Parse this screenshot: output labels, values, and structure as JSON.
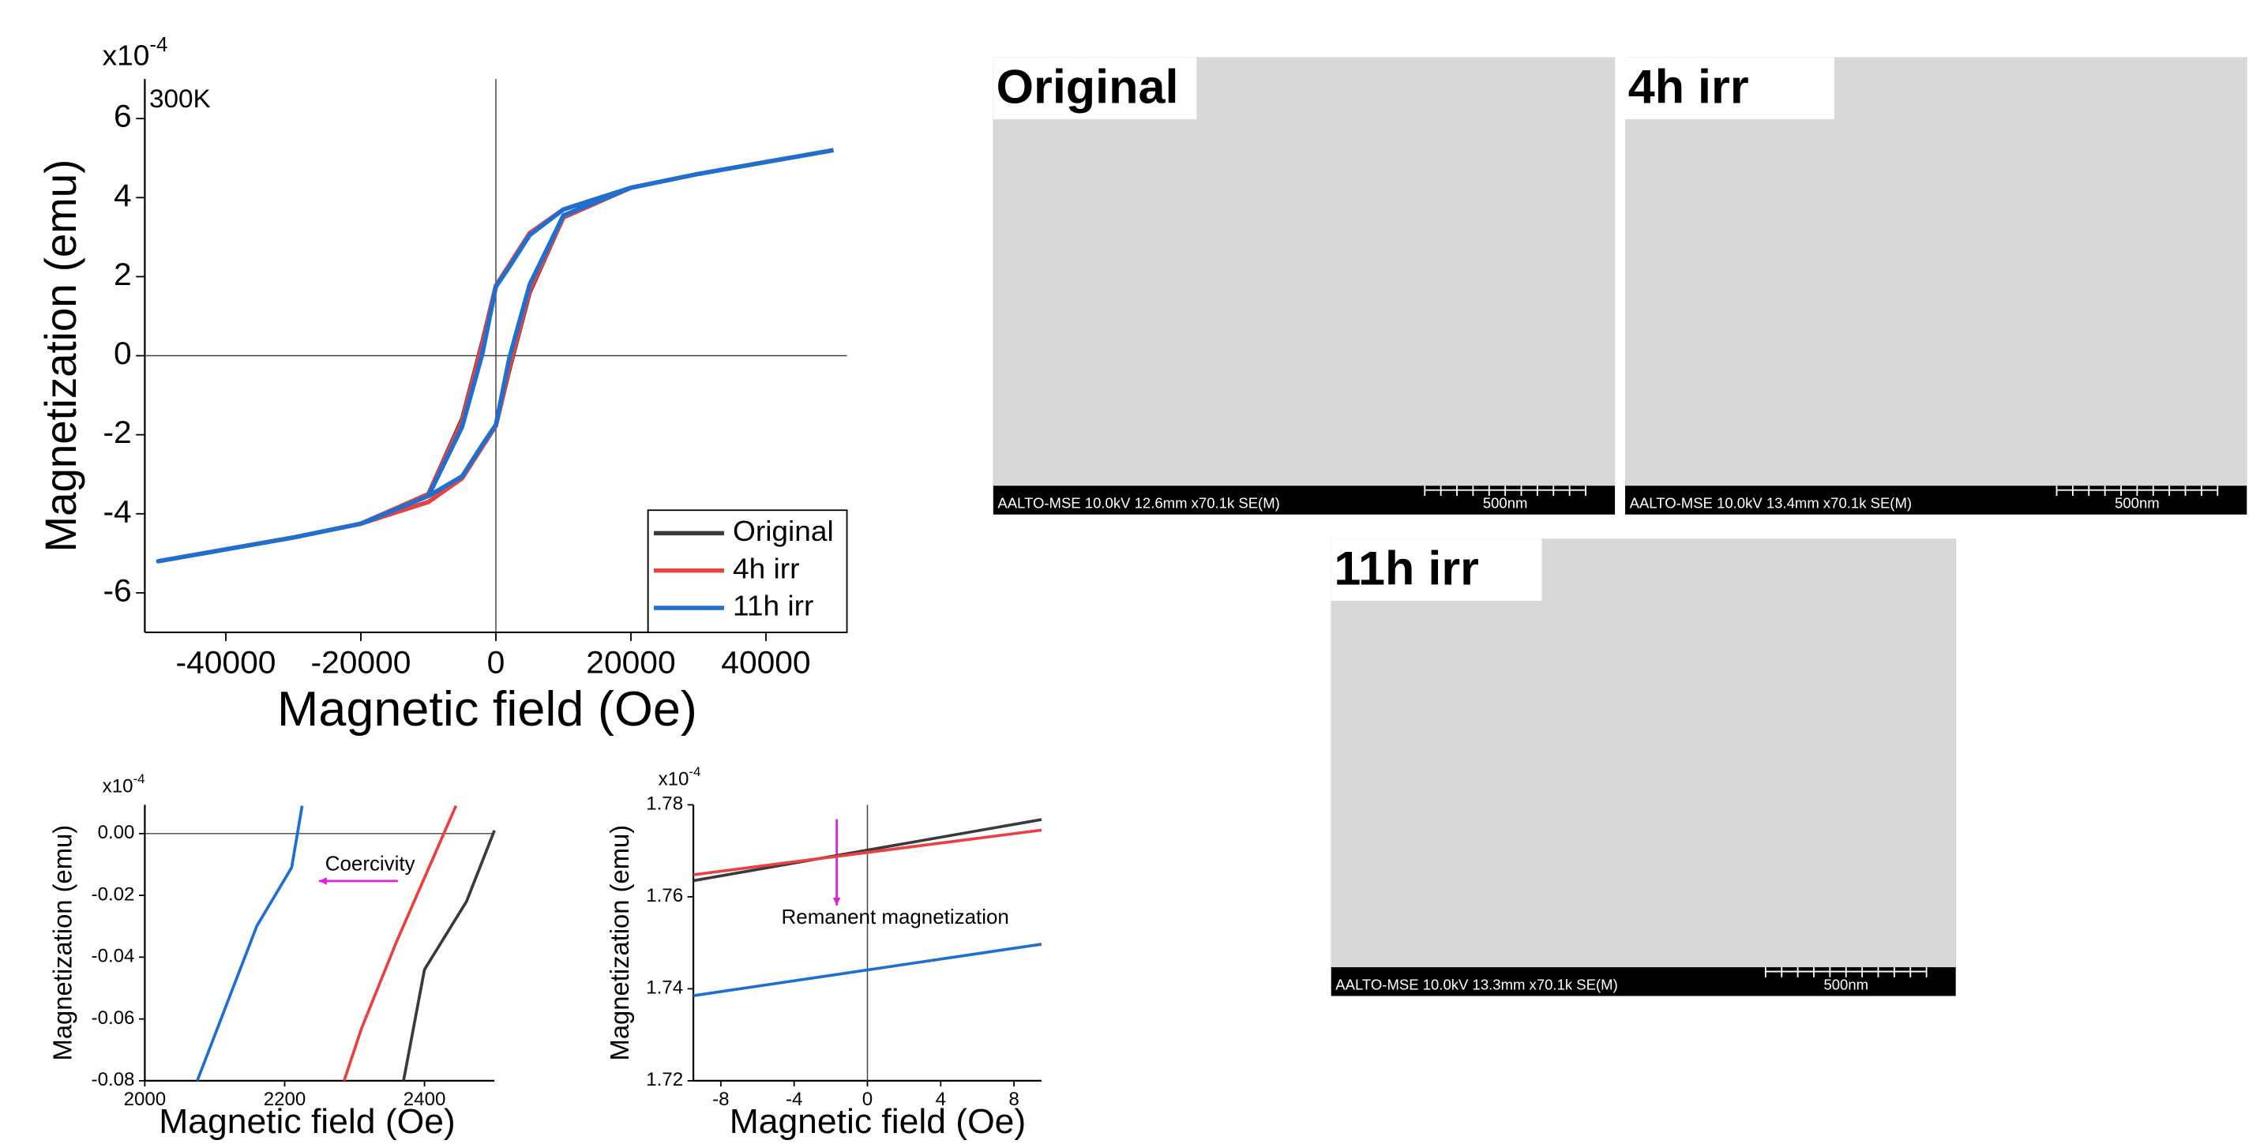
{
  "chart_data": [
    {
      "type": "line",
      "x_label": "Magnetic field (Oe)",
      "y_label": "Magnetization (emu)",
      "y_multiplier": {
        "base": "x10",
        "exponent": "-4"
      },
      "annotation": "300K",
      "x": [
        50000,
        40000,
        30000,
        20000,
        10000,
        5000,
        2000,
        0,
        -2000,
        -5000,
        -10000,
        -20000,
        -30000,
        -40000,
        -50000,
        -40000,
        -30000,
        -20000,
        -10000,
        -5000,
        -2000,
        0,
        2000,
        5000,
        10000,
        20000,
        30000,
        40000,
        50000
      ],
      "series": [
        {
          "name": "Original",
          "color": "#3a3a3a",
          "values": [
            5.2,
            4.9,
            4.6,
            4.25,
            3.7,
            3.1,
            2.3,
            1.77,
            0.35,
            -1.6,
            -3.5,
            -4.25,
            -4.6,
            -4.9,
            -5.2,
            -4.9,
            -4.6,
            -4.25,
            -3.7,
            -3.1,
            -2.3,
            -1.77,
            -0.35,
            1.6,
            3.5,
            4.25,
            4.6,
            4.9,
            5.2
          ]
        },
        {
          "name": "4h irr",
          "color": "#e8413f",
          "values": [
            5.2,
            4.9,
            4.6,
            4.25,
            3.7,
            3.1,
            2.3,
            1.77,
            0.3,
            -1.65,
            -3.5,
            -4.25,
            -4.6,
            -4.9,
            -5.2,
            -4.9,
            -4.6,
            -4.25,
            -3.7,
            -3.1,
            -2.3,
            -1.77,
            -0.3,
            1.65,
            3.5,
            4.25,
            4.6,
            4.9,
            5.2
          ]
        },
        {
          "name": "11h irr",
          "color": "#1f6fd1",
          "values": [
            5.2,
            4.9,
            4.6,
            4.25,
            3.7,
            3.05,
            2.25,
            1.745,
            0.05,
            -1.8,
            -3.55,
            -4.25,
            -4.6,
            -4.9,
            -5.2,
            -4.9,
            -4.6,
            -4.25,
            -3.55,
            -3.05,
            -2.25,
            -1.745,
            -0.05,
            1.8,
            3.55,
            4.25,
            4.6,
            4.9,
            5.2
          ]
        }
      ],
      "xlim": [
        -52000,
        52000
      ],
      "xticks": [
        -40000,
        -20000,
        0,
        20000,
        40000
      ],
      "ylim": [
        -7,
        7
      ],
      "yticks": [
        -6,
        -4,
        -2,
        0,
        2,
        4,
        6
      ],
      "legend": "lower right"
    },
    {
      "type": "line",
      "x_label": "Magnetic field (Oe)",
      "y_label": "Magnetization (emu)",
      "y_multiplier": {
        "base": "x10",
        "exponent": "-4"
      },
      "annotation": "Coercivity",
      "series": [
        {
          "name": "11h irr",
          "color": "#1f6fd1",
          "x": [
            2075,
            2160,
            2210,
            2225
          ],
          "values": [
            -0.08,
            -0.03,
            -0.011,
            0.009
          ]
        },
        {
          "name": "4h irr",
          "color": "#e8413f",
          "x": [
            2285,
            2310,
            2360,
            2445
          ],
          "values": [
            -0.08,
            -0.063,
            -0.035,
            0.009
          ]
        },
        {
          "name": "Original",
          "color": "#3a3a3a",
          "x": [
            2370,
            2400,
            2460,
            2500
          ],
          "values": [
            -0.08,
            -0.044,
            -0.022,
            0.001
          ]
        }
      ],
      "xlim": [
        2000,
        2500
      ],
      "xticks": [
        2000,
        2200,
        2400
      ],
      "ylim": [
        -0.08,
        0.0093
      ],
      "yticks": [
        {
          "value": 0,
          "label": "0.00"
        },
        {
          "value": -0.02,
          "label": "-0.02"
        },
        {
          "value": -0.04,
          "label": "-0.04"
        },
        {
          "value": -0.06,
          "label": "-0.06"
        },
        {
          "value": -0.08,
          "label": "-0.08"
        }
      ]
    },
    {
      "type": "line",
      "x_label": "Magnetic field (Oe)",
      "y_label": "Magnetization (emu)",
      "y_multiplier": {
        "base": "x10",
        "exponent": "-4"
      },
      "annotation": "Remanent magnetization",
      "series": [
        {
          "name": "Original",
          "color": "#3a3a3a",
          "x": [
            -9.5,
            9.5
          ],
          "values": [
            1.7635,
            1.7768
          ]
        },
        {
          "name": "4h irr",
          "color": "#e8413f",
          "x": [
            -9.5,
            9.5
          ],
          "values": [
            1.7648,
            1.7745
          ]
        },
        {
          "name": "11h irr",
          "color": "#1f6fd1",
          "x": [
            -9.5,
            9.5
          ],
          "values": [
            1.7385,
            1.7497
          ]
        }
      ],
      "xlim": [
        -9.5,
        9.5
      ],
      "xticks": [
        -8,
        -4,
        0,
        4,
        8
      ],
      "ylim": [
        1.72,
        1.78
      ],
      "yticks": [
        1.72,
        1.74,
        1.76,
        1.78
      ]
    }
  ],
  "images": [
    {
      "label": "Original",
      "caption": "AALTO-MSE 10.0kV 12.6mm x70.1k SE(M)",
      "scale": "500nm"
    },
    {
      "label": "4h irr",
      "caption": "AALTO-MSE 10.0kV 13.4mm x70.1k SE(M)",
      "scale": "500nm"
    },
    {
      "label": "11h irr",
      "caption": "AALTO-MSE 10.0kV 13.3mm x70.1k SE(M)",
      "scale": "500nm"
    }
  ]
}
